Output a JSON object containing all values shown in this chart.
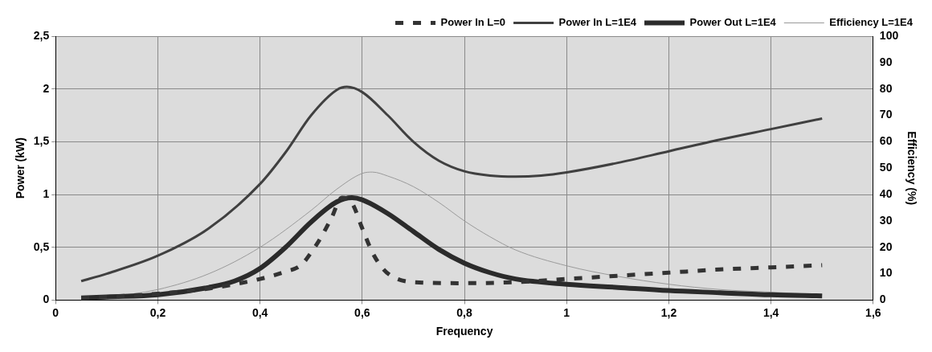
{
  "chart_data": {
    "type": "line",
    "xlabel": "Frequency",
    "ylabel": "Power (kW)",
    "y2label": "Efficiency (%)",
    "xlim": [
      0,
      1.6
    ],
    "xticks": [
      0,
      {
        "value": 0.2,
        "label": "0,2"
      },
      {
        "value": 0.4,
        "label": "0,4"
      },
      {
        "value": 0.6,
        "label": "0,6"
      },
      {
        "value": 0.8,
        "label": "0,8"
      },
      1,
      {
        "value": 1.2,
        "label": "1,2"
      },
      {
        "value": 1.4,
        "label": "1,4"
      },
      {
        "value": 1.6,
        "label": "1,6"
      }
    ],
    "ylim": [
      0,
      2.5
    ],
    "yticks": [
      0,
      {
        "value": 0.5,
        "label": "0,5"
      },
      1,
      {
        "value": 1.5,
        "label": "1,5"
      },
      2,
      {
        "value": 2.5,
        "label": "2,5"
      }
    ],
    "y2lim": [
      0,
      100
    ],
    "y2ticks": [
      0,
      10,
      20,
      30,
      40,
      50,
      60,
      70,
      80,
      90,
      100
    ],
    "grid": true,
    "legend": "top right",
    "marker": "none",
    "series": [
      {
        "name": "Power In L=0",
        "color": "#333333",
        "line_style": "dashed",
        "x": [
          0.05,
          0.1,
          0.2,
          0.3,
          0.35,
          0.4,
          0.45,
          0.48,
          0.5,
          0.52,
          0.54,
          0.56,
          0.58,
          0.6,
          0.62,
          0.64,
          0.66,
          0.7,
          0.8,
          0.9,
          1.0,
          1.1,
          1.2,
          1.3,
          1.4,
          1.5
        ],
        "values": [
          0.02,
          0.03,
          0.06,
          0.11,
          0.15,
          0.2,
          0.27,
          0.33,
          0.45,
          0.6,
          0.78,
          0.97,
          0.92,
          0.68,
          0.45,
          0.3,
          0.22,
          0.17,
          0.16,
          0.17,
          0.2,
          0.23,
          0.26,
          0.29,
          0.31,
          0.33
        ]
      },
      {
        "name": "Power In L=1E4",
        "color": "#404040",
        "line_style": "solid",
        "x": [
          0.05,
          0.1,
          0.2,
          0.3,
          0.4,
          0.45,
          0.5,
          0.55,
          0.57,
          0.6,
          0.65,
          0.7,
          0.75,
          0.8,
          0.85,
          0.9,
          0.95,
          1.0,
          1.1,
          1.2,
          1.3,
          1.4,
          1.5
        ],
        "values": [
          0.18,
          0.25,
          0.42,
          0.68,
          1.1,
          1.4,
          1.75,
          1.99,
          2.02,
          1.97,
          1.75,
          1.5,
          1.32,
          1.22,
          1.18,
          1.17,
          1.18,
          1.21,
          1.3,
          1.41,
          1.52,
          1.62,
          1.72
        ]
      },
      {
        "name": "Power Out L=1E4",
        "color": "#2b2b2b",
        "line_style": "solid",
        "x": [
          0.05,
          0.1,
          0.2,
          0.3,
          0.35,
          0.4,
          0.45,
          0.5,
          0.55,
          0.58,
          0.6,
          0.65,
          0.7,
          0.75,
          0.8,
          0.85,
          0.9,
          1.0,
          1.1,
          1.2,
          1.3,
          1.4,
          1.5
        ],
        "values": [
          0.02,
          0.03,
          0.05,
          0.12,
          0.18,
          0.3,
          0.5,
          0.74,
          0.93,
          0.97,
          0.95,
          0.82,
          0.65,
          0.48,
          0.35,
          0.26,
          0.2,
          0.15,
          0.12,
          0.09,
          0.07,
          0.05,
          0.04
        ]
      },
      {
        "name": "Efficiency L=1E4",
        "color": "#9a9a9a",
        "line_style": "solid",
        "axis": "y2",
        "x": [
          0.1,
          0.2,
          0.3,
          0.4,
          0.5,
          0.55,
          0.6,
          0.62,
          0.65,
          0.7,
          0.75,
          0.8,
          0.85,
          0.9,
          1.0,
          1.1,
          1.2,
          1.3,
          1.4,
          1.5
        ],
        "values": [
          1,
          4,
          10,
          20,
          34,
          42,
          48,
          48.5,
          47,
          43,
          37,
          30,
          24,
          19,
          13,
          9,
          6,
          4,
          3,
          2
        ]
      }
    ]
  }
}
